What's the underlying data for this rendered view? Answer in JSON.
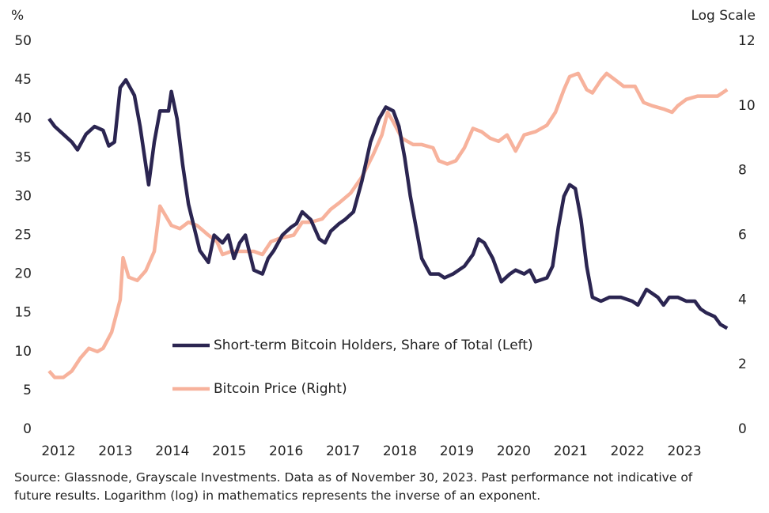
{
  "chart_data": {
    "type": "line",
    "y_axis_title": "%",
    "y2_axis_title": "Log Scale",
    "xlim": [
      2012,
      2024
    ],
    "xticks": [
      2012,
      2013,
      2014,
      2015,
      2016,
      2017,
      2018,
      2019,
      2020,
      2021,
      2022,
      2023
    ],
    "ylim": [
      0,
      50
    ],
    "yticks": [
      0,
      5,
      10,
      15,
      20,
      25,
      30,
      35,
      40,
      45,
      50
    ],
    "y2lim": [
      0,
      12
    ],
    "y2ticks": [
      0,
      2,
      4,
      6,
      8,
      10,
      12
    ],
    "series": [
      {
        "name": "Short-term Bitcoin Holders, Share of Total (Left)",
        "color": "#2b2551",
        "x": [
          2012.0,
          2012.1,
          2012.25,
          2012.4,
          2012.5,
          2012.65,
          2012.8,
          2012.95,
          2013.05,
          2013.15,
          2013.25,
          2013.35,
          2013.5,
          2013.6,
          2013.75,
          2013.85,
          2013.95,
          2014.1,
          2014.15,
          2014.25,
          2014.35,
          2014.45,
          2014.55,
          2014.65,
          2014.8,
          2014.9,
          2015.05,
          2015.15,
          2015.25,
          2015.35,
          2015.45,
          2015.55,
          2015.6,
          2015.75,
          2015.85,
          2015.95,
          2016.1,
          2016.25,
          2016.35,
          2016.45,
          2016.6,
          2016.75,
          2016.85,
          2016.95,
          2017.1,
          2017.2,
          2017.35,
          2017.5,
          2017.65,
          2017.8,
          2017.92,
          2018.05,
          2018.15,
          2018.25,
          2018.35,
          2018.45,
          2018.55,
          2018.7,
          2018.85,
          2018.95,
          2019.1,
          2019.3,
          2019.45,
          2019.55,
          2019.65,
          2019.8,
          2019.9,
          2019.95,
          2020.1,
          2020.2,
          2020.35,
          2020.45,
          2020.55,
          2020.75,
          2020.85,
          2020.95,
          2021.05,
          2021.15,
          2021.25,
          2021.35,
          2021.45,
          2021.55,
          2021.7,
          2021.85,
          2022.05,
          2022.25,
          2022.35,
          2022.5,
          2022.6,
          2022.7,
          2022.8,
          2022.9,
          2023.05,
          2023.2,
          2023.35,
          2023.45,
          2023.55,
          2023.7,
          2023.8,
          2023.92
        ],
        "values": [
          40,
          39,
          38,
          37,
          36,
          38,
          39,
          38.5,
          36.5,
          37,
          44,
          45,
          43,
          39,
          31.5,
          37,
          41,
          41,
          43.5,
          40,
          34,
          29,
          26,
          23,
          21.5,
          25,
          24,
          25,
          22,
          24,
          25,
          22,
          20.5,
          20,
          22,
          23,
          25,
          26,
          26.5,
          28,
          27,
          24.5,
          24,
          25.5,
          26.5,
          27,
          28,
          32,
          37,
          40,
          41.5,
          41,
          39,
          35,
          30,
          26,
          22,
          20,
          20,
          19.5,
          20,
          21,
          22.5,
          24.5,
          24,
          22,
          20,
          19,
          20,
          20.5,
          20,
          20.5,
          19,
          19.5,
          21,
          26,
          30,
          31.5,
          31,
          27,
          21,
          17,
          16.5,
          17,
          17,
          16.5,
          16,
          18,
          17.5,
          17,
          16,
          17,
          17,
          16.5,
          16.5,
          15.5,
          15,
          14.5,
          13.5,
          13
        ]
      },
      {
        "name": "Bitcoin Price (Right)",
        "color": "#f7b29c",
        "axis": "y2",
        "x": [
          2012.0,
          2012.1,
          2012.25,
          2012.4,
          2012.55,
          2012.7,
          2012.85,
          2012.95,
          2013.1,
          2013.25,
          2013.3,
          2013.4,
          2013.55,
          2013.7,
          2013.85,
          2013.95,
          2014.05,
          2014.15,
          2014.3,
          2014.45,
          2014.6,
          2014.8,
          2014.95,
          2015.05,
          2015.2,
          2015.4,
          2015.6,
          2015.75,
          2015.9,
          2016.05,
          2016.3,
          2016.45,
          2016.6,
          2016.8,
          2016.95,
          2017.1,
          2017.3,
          2017.5,
          2017.7,
          2017.85,
          2017.95,
          2018.05,
          2018.2,
          2018.4,
          2018.55,
          2018.75,
          2018.85,
          2019.0,
          2019.15,
          2019.3,
          2019.45,
          2019.6,
          2019.75,
          2019.9,
          2020.05,
          2020.2,
          2020.35,
          2020.55,
          2020.75,
          2020.9,
          2021.05,
          2021.15,
          2021.3,
          2021.45,
          2021.55,
          2021.7,
          2021.8,
          2021.95,
          2022.1,
          2022.3,
          2022.45,
          2022.6,
          2022.8,
          2022.95,
          2023.05,
          2023.2,
          2023.4,
          2023.6,
          2023.75,
          2023.92
        ],
        "values": [
          1.8,
          1.6,
          1.6,
          1.8,
          2.2,
          2.5,
          2.4,
          2.5,
          3.0,
          4.0,
          5.3,
          4.7,
          4.6,
          4.9,
          5.5,
          6.9,
          6.6,
          6.3,
          6.2,
          6.4,
          6.3,
          6.0,
          5.8,
          5.4,
          5.5,
          5.5,
          5.5,
          5.4,
          5.8,
          5.9,
          6.0,
          6.4,
          6.4,
          6.5,
          6.8,
          7.0,
          7.3,
          7.8,
          8.5,
          9.1,
          9.8,
          9.5,
          9.0,
          8.8,
          8.8,
          8.7,
          8.3,
          8.2,
          8.3,
          8.7,
          9.3,
          9.2,
          9.0,
          8.9,
          9.1,
          8.6,
          9.1,
          9.2,
          9.4,
          9.8,
          10.5,
          10.9,
          11.0,
          10.5,
          10.4,
          10.8,
          11.0,
          10.8,
          10.6,
          10.6,
          10.1,
          10.0,
          9.9,
          9.8,
          10.0,
          10.2,
          10.3,
          10.3,
          10.3,
          10.5
        ]
      }
    ],
    "note": "Source: Glassnode, Grayscale Investments. Data as of November 30, 2023. Past performance not indicative of future results. Logarithm (log) in mathematics represents the inverse of an exponent."
  }
}
